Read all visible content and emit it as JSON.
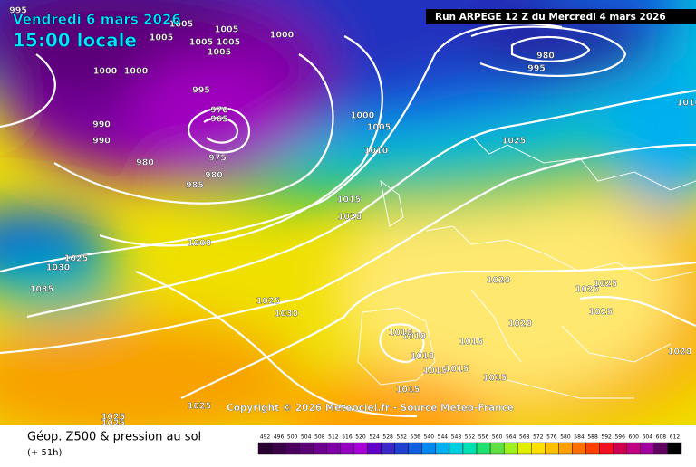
{
  "header": {
    "date": "Vendredi 6 mars 2026",
    "time": "15:00 locale",
    "run": "Run ARPEGE 12 Z du Mercredi 4 mars 2026"
  },
  "copyright": "Copyright © 2026 Meteociel.fr - Source Meteo-France",
  "legend": {
    "title": "Géop. Z500 & pression au sol",
    "lead": "(+ 51h)",
    "ticks": [
      492,
      496,
      500,
      504,
      508,
      512,
      516,
      520,
      524,
      528,
      532,
      536,
      540,
      544,
      548,
      552,
      556,
      560,
      564,
      568,
      572,
      576,
      580,
      584,
      588,
      592,
      596,
      600,
      604,
      608,
      612
    ],
    "colors": [
      "#2a0030",
      "#3a0048",
      "#4b0060",
      "#5c0078",
      "#6e0090",
      "#8000a8",
      "#9400c0",
      "#a800d8",
      "#6000c8",
      "#3c28c8",
      "#2040d0",
      "#1060e0",
      "#0088f0",
      "#00b0f0",
      "#00d0e0",
      "#00e0b0",
      "#20e070",
      "#60e040",
      "#a0f020",
      "#e0f000",
      "#ffe000",
      "#ffc000",
      "#ffa000",
      "#ff7000",
      "#ff4000",
      "#f01020",
      "#d00050",
      "#c00080",
      "#a000a0",
      "#600060",
      "#000000"
    ]
  },
  "isobar_labels": [
    995,
    1005,
    1005,
    1005,
    1005,
    1005,
    1005,
    1000,
    1000,
    1000,
    995,
    970,
    965,
    990,
    990,
    980,
    975,
    980,
    985,
    1000,
    1005,
    1010,
    1015,
    1020,
    1000,
    1025,
    1030,
    1035,
    1025,
    1030,
    1025,
    1020,
    1025,
    1025,
    1025,
    1020,
    1010,
    1010,
    1015,
    1010,
    1015,
    1015,
    1015,
    1015,
    1025,
    1025,
    1025,
    1020,
    980,
    995,
    1010
  ]
}
